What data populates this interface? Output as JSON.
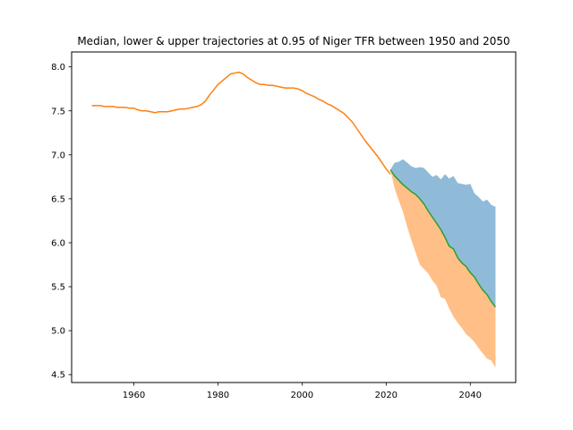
{
  "chart_data": {
    "type": "area",
    "title": "Median, lower & upper trajectories at 0.95 of Niger TFR between 1950 and 2050",
    "xlabel": "",
    "ylabel": "",
    "xlim": [
      1945.2,
      2050.8
    ],
    "ylim": [
      4.41,
      8.17
    ],
    "xticks": [
      1960,
      1980,
      2000,
      2020,
      2040
    ],
    "yticks": [
      4.5,
      5.0,
      5.5,
      6.0,
      6.5,
      7.0,
      7.5,
      8.0
    ],
    "grid": false,
    "colors": {
      "historical": "#ff7f0e",
      "median": "#2ca02c",
      "upper_band": "#1f77b4",
      "lower_band": "#ff7f0e"
    },
    "series": [
      {
        "x": [
          1950,
          1951,
          1952,
          1953,
          1954,
          1955,
          1956,
          1957,
          1958,
          1959,
          1960,
          1961,
          1962,
          1963,
          1964,
          1965,
          1966,
          1967,
          1968,
          1969,
          1970,
          1971,
          1972,
          1973,
          1974,
          1975,
          1976,
          1977,
          1978,
          1979,
          1980,
          1981,
          1982,
          1983,
          1984,
          1985,
          1986,
          1987,
          1988,
          1989,
          1990,
          1991,
          1992,
          1993,
          1994,
          1995,
          1996,
          1997,
          1998,
          1999,
          2000,
          2001,
          2002,
          2003,
          2004,
          2005,
          2006,
          2007,
          2008,
          2009,
          2010,
          2011,
          2012,
          2013,
          2014,
          2015,
          2016,
          2017,
          2018,
          2019,
          2020,
          2021
        ],
        "values": [
          7.56,
          7.56,
          7.56,
          7.55,
          7.55,
          7.55,
          7.54,
          7.54,
          7.54,
          7.53,
          7.53,
          7.51,
          7.5,
          7.5,
          7.49,
          7.48,
          7.49,
          7.49,
          7.49,
          7.5,
          7.51,
          7.52,
          7.52,
          7.53,
          7.54,
          7.55,
          7.57,
          7.61,
          7.68,
          7.74,
          7.8,
          7.84,
          7.88,
          7.92,
          7.93,
          7.94,
          7.92,
          7.88,
          7.85,
          7.82,
          7.8,
          7.8,
          7.79,
          7.79,
          7.78,
          7.77,
          7.76,
          7.76,
          7.76,
          7.75,
          7.73,
          7.7,
          7.68,
          7.66,
          7.63,
          7.61,
          7.58,
          7.56,
          7.53,
          7.5,
          7.47,
          7.42,
          7.37,
          7.3,
          7.23,
          7.16,
          7.1,
          7.04,
          6.98,
          6.91,
          6.84,
          6.78
        ]
      },
      {
        "x": [
          2021,
          2022,
          2023,
          2024,
          2025,
          2026,
          2027,
          2028,
          2029,
          2030,
          2031,
          2032,
          2033,
          2034,
          2035,
          2036,
          2037,
          2038,
          2039,
          2040,
          2041,
          2042,
          2043,
          2044,
          2045,
          2046
        ],
        "values": [
          6.83,
          6.76,
          6.71,
          6.66,
          6.62,
          6.58,
          6.55,
          6.5,
          6.44,
          6.36,
          6.29,
          6.22,
          6.15,
          6.06,
          5.96,
          5.93,
          5.83,
          5.77,
          5.73,
          5.66,
          5.61,
          5.53,
          5.46,
          5.41,
          5.33,
          5.27
        ]
      },
      {
        "x": [
          2021,
          2022,
          2023,
          2024,
          2025,
          2026,
          2027,
          2028,
          2029,
          2030,
          2031,
          2032,
          2033,
          2034,
          2035,
          2036,
          2037,
          2038,
          2039,
          2040,
          2041,
          2042,
          2043,
          2044,
          2045,
          2046
        ],
        "upper": [
          6.83,
          6.91,
          6.92,
          6.95,
          6.91,
          6.87,
          6.85,
          6.86,
          6.85,
          6.8,
          6.75,
          6.77,
          6.72,
          6.78,
          6.73,
          6.76,
          6.68,
          6.67,
          6.66,
          6.67,
          6.56,
          6.52,
          6.47,
          6.49,
          6.43,
          6.41
        ],
        "lower": [
          6.83,
          6.62,
          6.48,
          6.35,
          6.18,
          6.03,
          5.89,
          5.75,
          5.7,
          5.65,
          5.57,
          5.51,
          5.38,
          5.36,
          5.25,
          5.16,
          5.09,
          5.03,
          4.96,
          4.92,
          4.87,
          4.8,
          4.74,
          4.68,
          4.66,
          4.58
        ]
      }
    ]
  }
}
